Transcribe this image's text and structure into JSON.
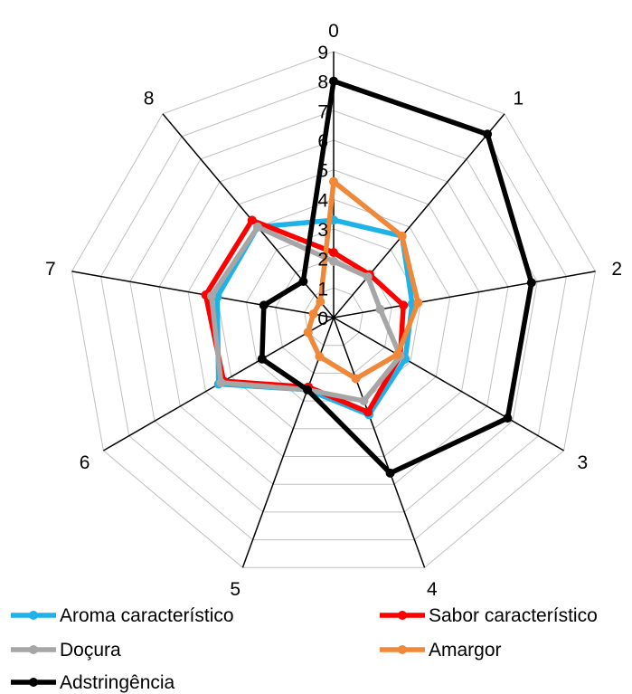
{
  "chart_data": {
    "type": "radar",
    "categories": [
      "0",
      "1",
      "2",
      "3",
      "4",
      "5",
      "6",
      "7",
      "8"
    ],
    "rlim": [
      0,
      9
    ],
    "ticks": [
      "0",
      "1",
      "2",
      "3",
      "4",
      "5",
      "6",
      "7",
      "8",
      "9"
    ],
    "grid": true,
    "legend_position": "bottom",
    "series": [
      {
        "name": "Aroma característico",
        "color": "#1fb2e8",
        "values": [
          3.3,
          3.6,
          2.7,
          2.8,
          3.5,
          2.6,
          4.5,
          4.0,
          4.0
        ]
      },
      {
        "name": "Sabor característico",
        "color": "#ff0000",
        "values": [
          2.2,
          1.9,
          2.4,
          2.6,
          3.4,
          2.5,
          4.3,
          4.4,
          4.3
        ]
      },
      {
        "name": "Doçura",
        "color": "#a6a6a6",
        "values": [
          1.9,
          1.8,
          1.6,
          2.6,
          3.0,
          2.6,
          4.4,
          4.2,
          4.0
        ]
      },
      {
        "name": "Amargor",
        "color": "#f0883a",
        "values": [
          4.6,
          3.6,
          2.9,
          2.5,
          2.2,
          1.4,
          1.0,
          0.7,
          0.7
        ]
      },
      {
        "name": "Adstringência",
        "color": "#000000",
        "values": [
          8.0,
          8.1,
          6.8,
          6.8,
          5.6,
          2.6,
          2.8,
          2.4,
          1.6
        ]
      }
    ]
  }
}
